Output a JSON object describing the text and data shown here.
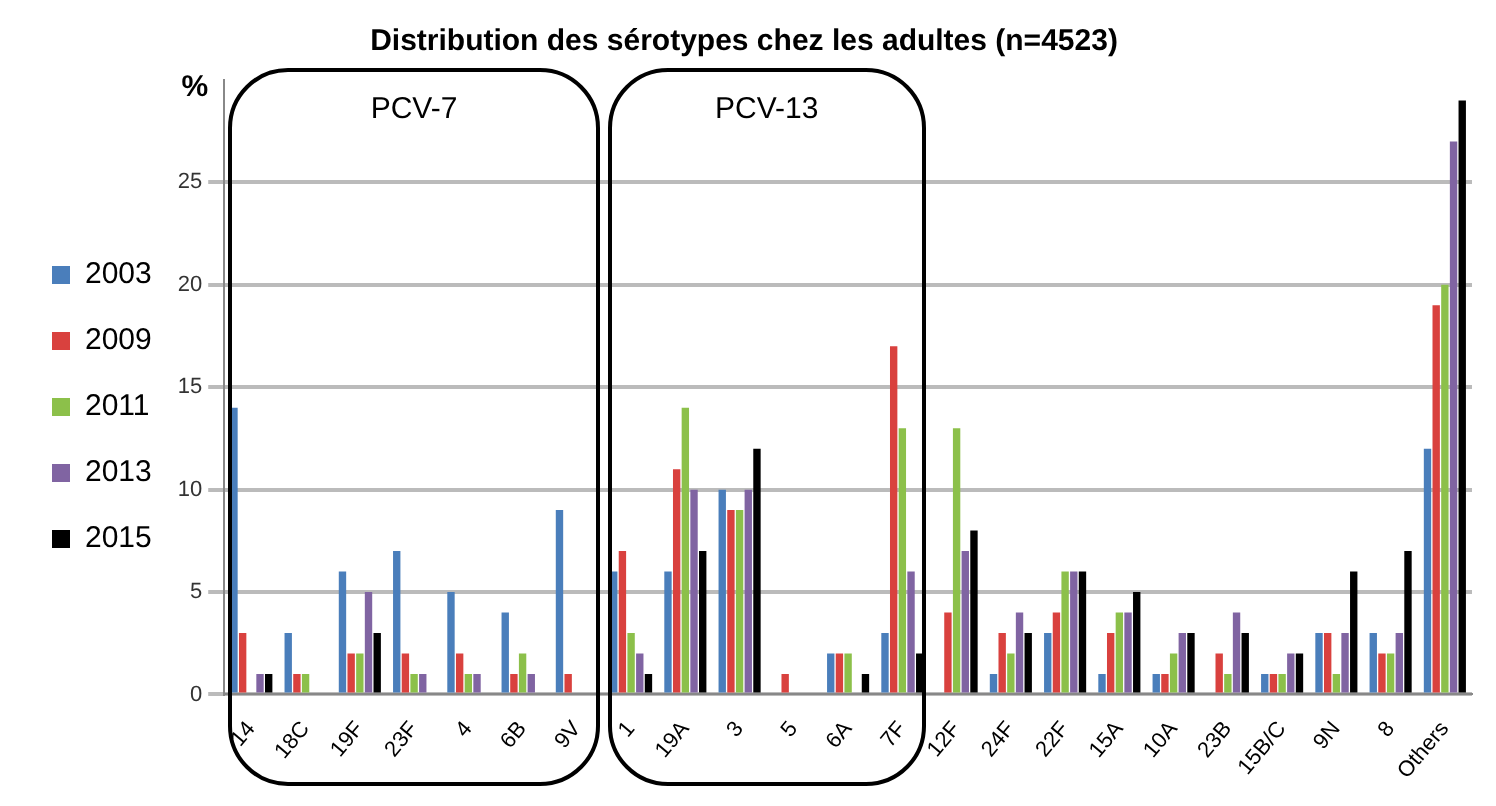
{
  "chart_data": {
    "type": "bar",
    "title": "Distribution des sérotypes chez les adultes (n=4523)",
    "ylabel": "%",
    "categories": [
      "14",
      "18C",
      "19F",
      "23F",
      "4",
      "6B",
      "9V",
      "1",
      "19A",
      "3",
      "5",
      "6A",
      "7F",
      "12F",
      "24F",
      "22F",
      "15A",
      "10A",
      "23B",
      "15B/C",
      "9N",
      "8",
      "Others"
    ],
    "series": [
      {
        "name": "2003",
        "color": "#4a7ebb",
        "values": [
          14,
          3,
          6,
          7,
          5,
          4,
          9,
          6,
          6,
          10,
          0,
          2,
          3,
          0,
          1,
          3,
          1,
          1,
          0,
          1,
          3,
          3,
          12
        ]
      },
      {
        "name": "2009",
        "color": "#d9413e",
        "values": [
          3,
          1,
          2,
          2,
          2,
          1,
          1,
          7,
          11,
          9,
          1,
          2,
          17,
          4,
          3,
          4,
          3,
          1,
          2,
          1,
          3,
          2,
          19
        ]
      },
      {
        "name": "2011",
        "color": "#8cc04a",
        "values": [
          0,
          1,
          2,
          1,
          1,
          2,
          0,
          3,
          14,
          9,
          0,
          2,
          13,
          13,
          2,
          6,
          4,
          2,
          1,
          1,
          1,
          2,
          20
        ]
      },
      {
        "name": "2013",
        "color": "#8064a2",
        "values": [
          1,
          0,
          5,
          1,
          1,
          1,
          0,
          2,
          10,
          10,
          0,
          0,
          6,
          7,
          4,
          6,
          4,
          3,
          4,
          2,
          3,
          3,
          27
        ]
      },
      {
        "name": "2015",
        "color": "#000000",
        "values": [
          1,
          0,
          3,
          0,
          0,
          0,
          0,
          1,
          7,
          12,
          0,
          1,
          2,
          8,
          3,
          6,
          5,
          3,
          3,
          2,
          6,
          7,
          29
        ]
      }
    ],
    "ylim": [
      0,
      30
    ],
    "yticks": [
      0,
      5,
      10,
      15,
      20,
      25
    ],
    "grid": "y",
    "legend": "left",
    "annotations": [
      "PCV-7",
      "PCV-13"
    ]
  }
}
